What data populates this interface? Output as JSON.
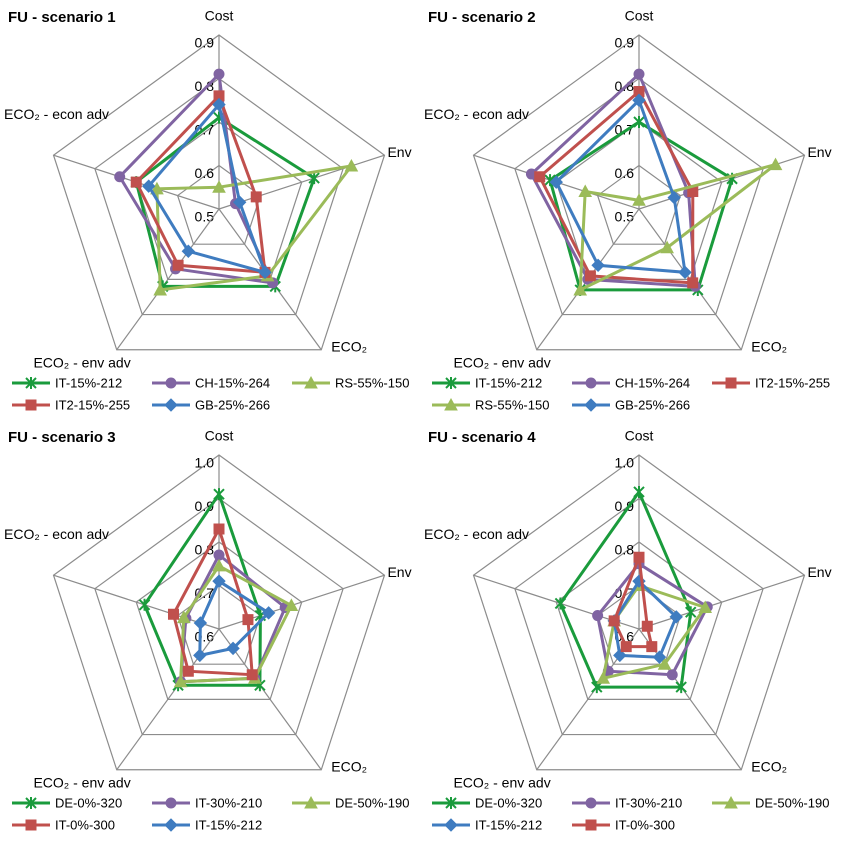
{
  "chart_data": [
    {
      "type": "radar",
      "title": "FU - scenario 1",
      "categories": [
        "Cost",
        "Env",
        "ECO₂",
        "ECO₂ - env adv",
        "ECO₂ - econ adv"
      ],
      "ylim": [
        0.5,
        0.9
      ],
      "yticks": [
        0.5,
        0.6,
        0.7,
        0.8,
        0.9
      ],
      "grid": true,
      "legend": "bottom",
      "series": [
        {
          "name": "IT-15%-212",
          "color": "#1a9b3c",
          "marker": "star",
          "values": [
            0.71,
            0.73,
            0.72,
            0.72,
            0.7
          ]
        },
        {
          "name": "CH-15%-264",
          "color": "#8064a2",
          "marker": "circle",
          "values": [
            0.81,
            0.54,
            0.71,
            0.67,
            0.74
          ]
        },
        {
          "name": "RS-55%-150",
          "color": "#9bbb59",
          "marker": "triangle",
          "values": [
            0.55,
            0.82,
            0.69,
            0.73,
            0.65
          ]
        },
        {
          "name": "IT2-15%-255",
          "color": "#c0504d",
          "marker": "square",
          "values": [
            0.76,
            0.59,
            0.68,
            0.66,
            0.7
          ]
        },
        {
          "name": "GB-25%-266",
          "color": "#3f7cc0",
          "marker": "diamond",
          "values": [
            0.74,
            0.55,
            0.68,
            0.62,
            0.67
          ]
        }
      ]
    },
    {
      "type": "radar",
      "title": "FU - scenario 2",
      "categories": [
        "Cost",
        "Env",
        "ECO₂",
        "ECO₂ - env adv",
        "ECO₂ - econ adv"
      ],
      "ylim": [
        0.5,
        0.9
      ],
      "yticks": [
        0.5,
        0.6,
        0.7,
        0.8,
        0.9
      ],
      "grid": true,
      "legend": "bottom",
      "series": [
        {
          "name": "IT-15%-212",
          "color": "#1a9b3c",
          "marker": "star",
          "values": [
            0.7,
            0.725,
            0.73,
            0.73,
            0.715
          ]
        },
        {
          "name": "CH-15%-264",
          "color": "#8064a2",
          "marker": "circle",
          "values": [
            0.81,
            0.62,
            0.72,
            0.7,
            0.76
          ]
        },
        {
          "name": "IT2-15%-255",
          "color": "#c0504d",
          "marker": "square",
          "values": [
            0.77,
            0.63,
            0.71,
            0.69,
            0.74
          ]
        },
        {
          "name": "RS-55%-150",
          "color": "#9bbb59",
          "marker": "triangle",
          "values": [
            0.52,
            0.83,
            0.61,
            0.73,
            0.63
          ]
        },
        {
          "name": "GB-25%-266",
          "color": "#3f7cc0",
          "marker": "diamond",
          "values": [
            0.75,
            0.585,
            0.68,
            0.66,
            0.7
          ]
        }
      ]
    },
    {
      "type": "radar",
      "title": "FU - scenario 3",
      "categories": [
        "Cost",
        "Env",
        "ECO₂",
        "ECO₂ - env adv",
        "ECO₂ - econ adv"
      ],
      "ylim": [
        0.6,
        1.0
      ],
      "yticks": [
        0.6,
        0.7,
        0.8,
        0.9,
        {
          "value": 1.0,
          "label": "1.0"
        }
      ],
      "grid": true,
      "legend": "bottom",
      "series": [
        {
          "name": "DE-0%-320",
          "color": "#1a9b3c",
          "marker": "star",
          "values": [
            0.91,
            0.7,
            0.76,
            0.76,
            0.78
          ]
        },
        {
          "name": "IT-30%-210",
          "color": "#8064a2",
          "marker": "circle",
          "values": [
            0.77,
            0.76,
            0.74,
            0.75,
            0.68
          ]
        },
        {
          "name": "DE-50%-190",
          "color": "#9bbb59",
          "marker": "triangle",
          "values": [
            0.745,
            0.775,
            0.74,
            0.75,
            0.685
          ]
        },
        {
          "name": "IT-0%-300",
          "color": "#c0504d",
          "marker": "square",
          "values": [
            0.83,
            0.67,
            0.73,
            0.72,
            0.71
          ]
        },
        {
          "name": "IT-15%-212",
          "color": "#3f7cc0",
          "marker": "diamond",
          "values": [
            0.71,
            0.72,
            0.655,
            0.675,
            0.645
          ]
        }
      ]
    },
    {
      "type": "radar",
      "title": "FU - scenario 4",
      "categories": [
        "Cost",
        "Env",
        "ECO₂",
        "ECO₂ - env adv",
        "ECO₂ - econ adv"
      ],
      "ylim": [
        0.6,
        1.0
      ],
      "yticks": [
        0.6,
        0.7,
        0.8,
        0.9,
        {
          "value": 1.0,
          "label": "1.0"
        }
      ],
      "grid": true,
      "legend": "bottom",
      "series": [
        {
          "name": "DE-0%-320",
          "color": "#1a9b3c",
          "marker": "star",
          "values": [
            0.915,
            0.725,
            0.765,
            0.765,
            0.79
          ]
        },
        {
          "name": "IT-30%-210",
          "color": "#8064a2",
          "marker": "circle",
          "values": [
            0.75,
            0.765,
            0.73,
            0.72,
            0.7
          ]
        },
        {
          "name": "DE-50%-190",
          "color": "#9bbb59",
          "marker": "triangle",
          "values": [
            0.7,
            0.76,
            0.7,
            0.74,
            0.66
          ]
        },
        {
          "name": "IT-15%-212",
          "color": "#3f7cc0",
          "marker": "diamond",
          "values": [
            0.71,
            0.69,
            0.68,
            0.675,
            0.66
          ]
        },
        {
          "name": "IT-0%-300",
          "color": "#c0504d",
          "marker": "square",
          "values": [
            0.765,
            0.62,
            0.65,
            0.65,
            0.66
          ]
        }
      ]
    }
  ]
}
